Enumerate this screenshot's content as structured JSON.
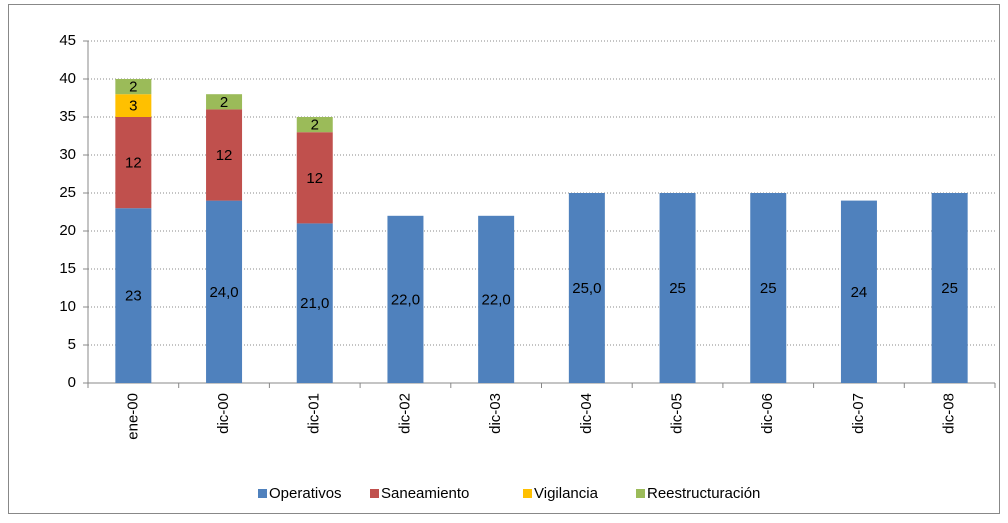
{
  "chart_data": {
    "type": "stacked-bar",
    "categories": [
      "ene-00",
      "dic-00",
      "dic-01",
      "dic-02",
      "dic-03",
      "dic-04",
      "dic-05",
      "dic-06",
      "dic-07",
      "dic-08"
    ],
    "series": [
      {
        "name": "Operativos",
        "color": "#4f81bd",
        "values": [
          23,
          24,
          21,
          22,
          22,
          25,
          25,
          25,
          24,
          25
        ],
        "value_labels": [
          "23",
          "24,0",
          "21,0",
          "22,0",
          "22,0",
          "25,0",
          "25",
          "25",
          "24",
          "25"
        ]
      },
      {
        "name": "Saneamiento",
        "color": "#c0504d",
        "values": [
          12,
          12,
          12,
          null,
          null,
          null,
          null,
          null,
          null,
          null
        ]
      },
      {
        "name": "Vigilancia",
        "color": "#ffc000",
        "values": [
          3,
          null,
          null,
          null,
          null,
          null,
          null,
          null,
          null,
          null
        ]
      },
      {
        "name": "Reestructuración",
        "color": "#9bbb59",
        "values": [
          2,
          2,
          2,
          null,
          null,
          null,
          null,
          null,
          null,
          null
        ]
      }
    ],
    "ylim": [
      0,
      45
    ],
    "yticks": [
      0,
      5,
      10,
      15,
      20,
      25,
      30,
      35,
      40,
      45
    ],
    "grid": true,
    "legend": "bottom"
  }
}
